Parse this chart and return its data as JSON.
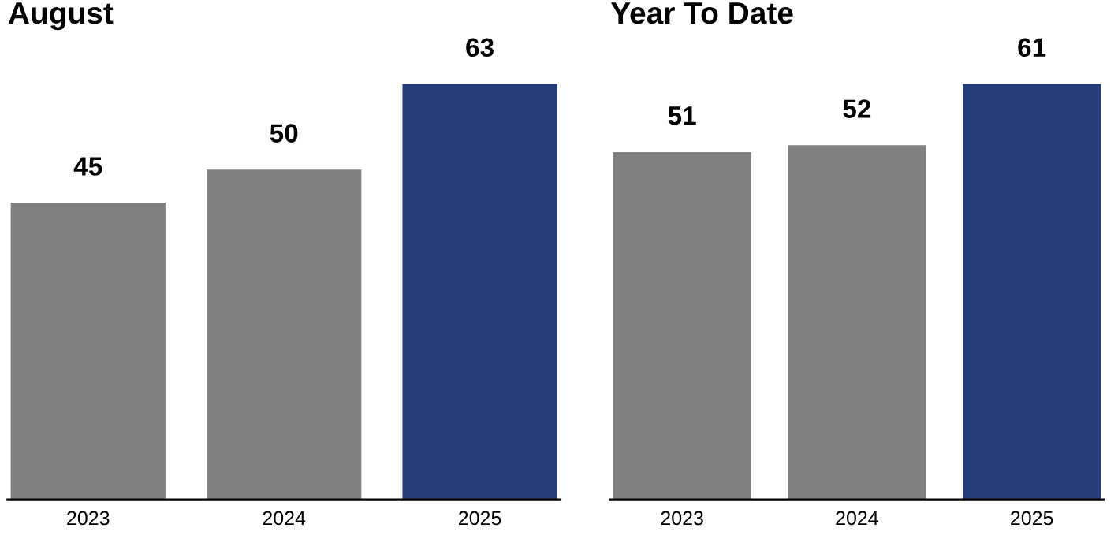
{
  "chart_data": [
    {
      "type": "bar",
      "title": "August",
      "categories": [
        "2023",
        "2024",
        "2025"
      ],
      "values": [
        45,
        50,
        63
      ],
      "colors": [
        "#808080",
        "#808080",
        "#253b7a"
      ],
      "data_labels": true,
      "tick_labels": "x"
    },
    {
      "type": "bar",
      "title": "Year To Date",
      "categories": [
        "2023",
        "2024",
        "2025"
      ],
      "values": [
        51,
        52,
        61
      ],
      "colors": [
        "#808080",
        "#808080",
        "#253b7a"
      ],
      "data_labels": true,
      "tick_labels": "x"
    }
  ]
}
